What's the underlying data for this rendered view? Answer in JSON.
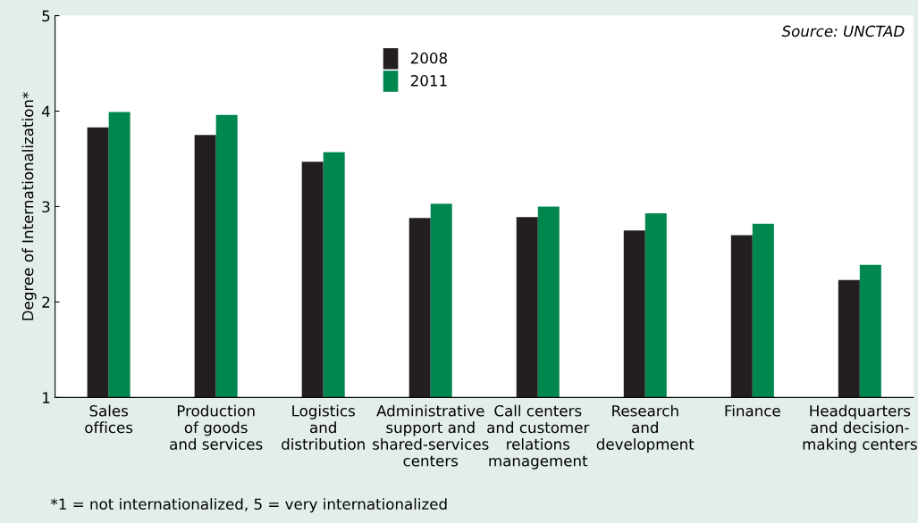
{
  "chart_data": {
    "type": "bar",
    "ylabel": "Degree of Internationalization*",
    "categories": [
      "Sales\noffices",
      "Production\nof goods\nand services",
      "Logistics\nand\ndistribution",
      "Administrative\nsupport and\nshared-services\ncenters",
      "Call centers\nand customer\nrelations\nmanagement",
      "Research\nand\ndevelopment",
      "Finance",
      "Headquarters\nand decision-\nmaking centers"
    ],
    "series": [
      {
        "name": "2008",
        "color": "#231f20",
        "values": [
          3.83,
          3.75,
          3.47,
          2.88,
          2.89,
          2.75,
          2.7,
          2.23
        ]
      },
      {
        "name": "2011",
        "color": "#00874f",
        "values": [
          3.99,
          3.96,
          3.57,
          3.03,
          3.0,
          2.93,
          2.82,
          2.39
        ]
      }
    ],
    "ylim": [
      1,
      5
    ],
    "yticks": [
      1,
      2,
      3,
      4,
      5
    ],
    "grid": false,
    "legend": "top",
    "annotations": [
      "Source: UNCTAD",
      "*1 = not internationalized, 5 = very internationalized"
    ]
  }
}
